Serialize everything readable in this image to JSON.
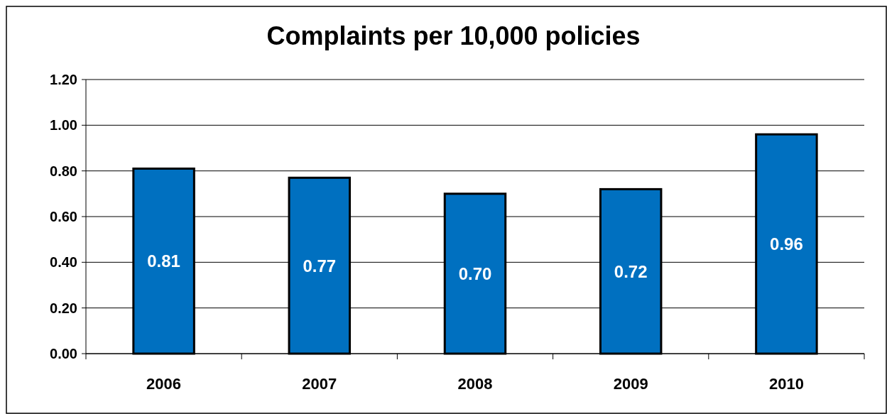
{
  "chart_data": {
    "type": "bar",
    "title": "Complaints per 10,000 policies",
    "categories": [
      "2006",
      "2007",
      "2008",
      "2009",
      "2010"
    ],
    "values": [
      0.81,
      0.77,
      0.7,
      0.72,
      0.96
    ],
    "color": "#0070c0",
    "ylim": [
      0,
      1.2
    ],
    "yticks": [
      {
        "value": 0,
        "label": "0.00"
      },
      {
        "value": 0.2,
        "label": "0.20"
      },
      {
        "value": 0.4,
        "label": "0.40"
      },
      {
        "value": 0.6,
        "label": "0.60"
      },
      {
        "value": 0.8,
        "label": "0.80"
      },
      {
        "value": 1,
        "label": "1.00"
      },
      {
        "value": 1.2,
        "label": "1.20"
      }
    ],
    "value_labels": [
      "0.81",
      "0.77",
      "0.70",
      "0.72",
      "0.96"
    ],
    "grid": "y"
  }
}
